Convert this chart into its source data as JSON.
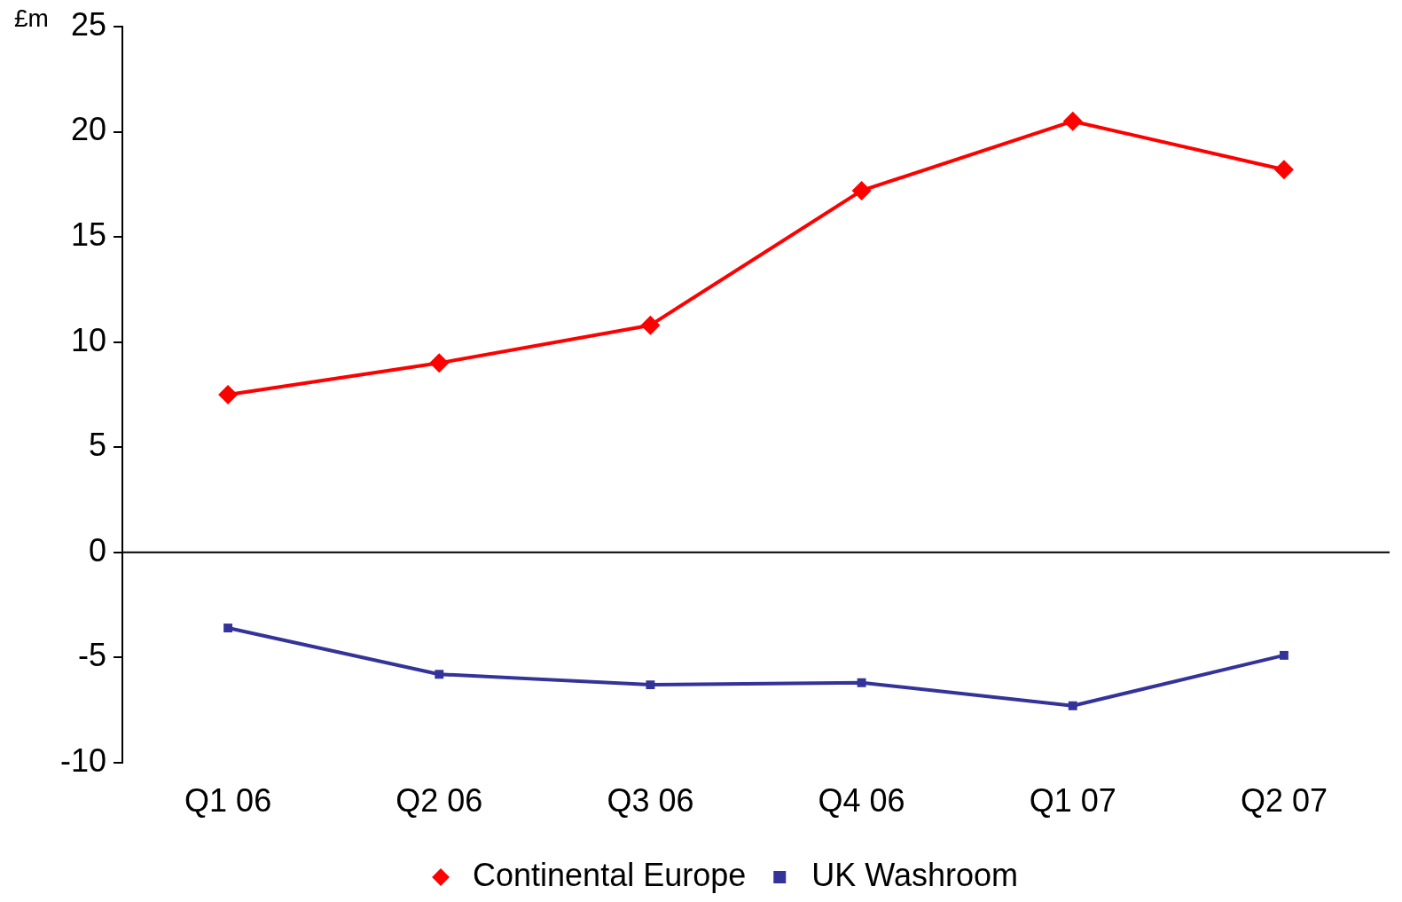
{
  "chart_data": {
    "type": "line",
    "ylabel": "£m",
    "categories": [
      "Q1 06",
      "Q2 06",
      "Q3 06",
      "Q4 06",
      "Q1 07",
      "Q2 07"
    ],
    "series": [
      {
        "name": "Continental Europe",
        "color": "#ff0000",
        "marker": "diamond",
        "values": [
          7.5,
          9.0,
          10.8,
          17.2,
          20.5,
          18.2
        ]
      },
      {
        "name": "UK Washroom",
        "color": "#333399",
        "marker": "square",
        "values": [
          -3.6,
          -5.8,
          -6.3,
          -6.2,
          -7.3,
          -4.9
        ]
      }
    ],
    "ref_lines": [
      {
        "axis": "y",
        "value": 0,
        "color": "#000000",
        "line_style": "solid"
      }
    ],
    "ylim": [
      -10,
      25
    ],
    "yticks": [
      -10,
      -5,
      0,
      5,
      10,
      15,
      20,
      25
    ],
    "grid": false,
    "legend": "bottom",
    "line_style": "solid"
  }
}
